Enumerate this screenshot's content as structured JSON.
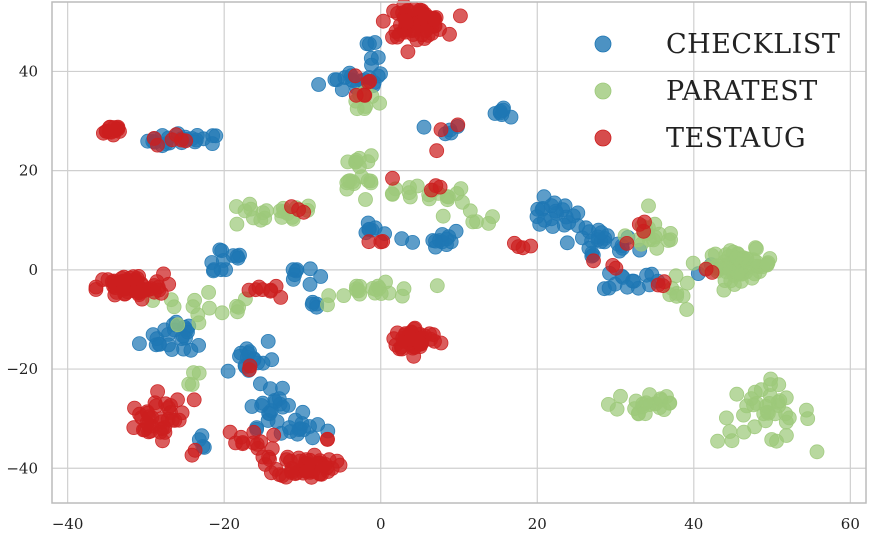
{
  "chart_data": {
    "type": "scatter",
    "title": "",
    "xlabel": "",
    "ylabel": "",
    "xlim": [
      -42,
      62
    ],
    "ylim": [
      -47,
      54
    ],
    "x_ticks": [
      -40,
      -20,
      0,
      20,
      40,
      60
    ],
    "y_ticks": [
      -40,
      -20,
      0,
      20,
      40
    ],
    "x_tick_labels": [
      "−40",
      "−20",
      "0",
      "20",
      "40",
      "60"
    ],
    "y_tick_labels": [
      "−40",
      "−20",
      "0",
      "20",
      "40"
    ],
    "grid": true,
    "legend_position": "top-right",
    "series": [
      {
        "name": "CheckList",
        "legend_label": "CHECKLIST",
        "color": "#1f77b4",
        "clusters": [
          {
            "center": [
              -3,
              38
            ],
            "spread": [
              4,
              2
            ],
            "count": 18
          },
          {
            "center": [
              -1,
              46
            ],
            "spread": [
              1,
              3
            ],
            "count": 6
          },
          {
            "center": [
              -25,
              26
            ],
            "spread": [
              4,
              1.2
            ],
            "count": 22
          },
          {
            "center": [
              16,
              32
            ],
            "spread": [
              1.5,
              1
            ],
            "count": 7
          },
          {
            "center": [
              8,
              28
            ],
            "spread": [
              2,
              1
            ],
            "count": 5
          },
          {
            "center": [
              22,
              11
            ],
            "spread": [
              3,
              2.5
            ],
            "count": 20
          },
          {
            "center": [
              28,
              5
            ],
            "spread": [
              4,
              3
            ],
            "count": 24
          },
          {
            "center": [
              32,
              -2
            ],
            "spread": [
              3,
              2
            ],
            "count": 14
          },
          {
            "center": [
              6,
              6
            ],
            "spread": [
              4,
              2
            ],
            "count": 14
          },
          {
            "center": [
              -2,
              9
            ],
            "spread": [
              2,
              1.5
            ],
            "count": 6
          },
          {
            "center": [
              -20,
              2
            ],
            "spread": [
              2.5,
              3
            ],
            "count": 12
          },
          {
            "center": [
              -25,
              -13
            ],
            "spread": [
              2.5,
              4
            ],
            "count": 16
          },
          {
            "center": [
              -17,
              -18
            ],
            "spread": [
              3,
              4
            ],
            "count": 18
          },
          {
            "center": [
              -14,
              -28
            ],
            "spread": [
              3,
              3
            ],
            "count": 20
          },
          {
            "center": [
              -10,
              -32
            ],
            "spread": [
              3,
              2
            ],
            "count": 12
          },
          {
            "center": [
              -29,
              -14
            ],
            "spread": [
              1.5,
              2
            ],
            "count": 6
          },
          {
            "center": [
              -11,
              -1
            ],
            "spread": [
              2,
              2
            ],
            "count": 8
          },
          {
            "center": [
              -8,
              -7
            ],
            "spread": [
              1.5,
              1
            ],
            "count": 4
          },
          {
            "center": [
              -23,
              -35
            ],
            "spread": [
              1.5,
              1.5
            ],
            "count": 4
          },
          {
            "center": [
              41,
              0
            ],
            "spread": [
              1,
              1
            ],
            "count": 2
          }
        ]
      },
      {
        "name": "ParaTest",
        "legend_label": "PARATEST",
        "color": "#9dc97a",
        "clusters": [
          {
            "center": [
              46,
              1
            ],
            "spread": [
              3.5,
              2.5
            ],
            "count": 60
          },
          {
            "center": [
              49,
              -29
            ],
            "spread": [
              5,
              5
            ],
            "count": 38
          },
          {
            "center": [
              34,
              -27
            ],
            "spread": [
              4,
              3
            ],
            "count": 22
          },
          {
            "center": [
              35,
              7
            ],
            "spread": [
              3,
              3
            ],
            "count": 18
          },
          {
            "center": [
              38,
              -5
            ],
            "spread": [
              2,
              3
            ],
            "count": 8
          },
          {
            "center": [
              -15,
              11
            ],
            "spread": [
              6,
              2
            ],
            "count": 20
          },
          {
            "center": [
              6,
              15
            ],
            "spread": [
              5,
              1.5
            ],
            "count": 18
          },
          {
            "center": [
              -3,
              22
            ],
            "spread": [
              2,
              1.2
            ],
            "count": 8
          },
          {
            "center": [
              -3,
              17
            ],
            "spread": [
              3,
              1.2
            ],
            "count": 10
          },
          {
            "center": [
              0,
              -4
            ],
            "spread": [
              5,
              2
            ],
            "count": 20
          },
          {
            "center": [
              -24,
              -8
            ],
            "spread": [
              3,
              3
            ],
            "count": 10
          },
          {
            "center": [
              -2,
              35
            ],
            "spread": [
              2,
              3
            ],
            "count": 8
          },
          {
            "center": [
              12,
              11
            ],
            "spread": [
              3,
              1.5
            ],
            "count": 6
          },
          {
            "center": [
              -24,
              -22
            ],
            "spread": [
              1,
              1.5
            ],
            "count": 4
          },
          {
            "center": [
              -18,
              -8
            ],
            "spread": [
              2,
              1.5
            ],
            "count": 5
          }
        ]
      },
      {
        "name": "TestAug",
        "legend_label": "TESTAUG",
        "color": "#cc1f1f",
        "clusters": [
          {
            "center": [
              4.5,
              50
            ],
            "spread": [
              3,
              2.5
            ],
            "count": 70
          },
          {
            "center": [
              -32,
              -3.5
            ],
            "spread": [
              3.5,
              2.2
            ],
            "count": 70
          },
          {
            "center": [
              4.5,
              -14
            ],
            "spread": [
              2.5,
              2
            ],
            "count": 50
          },
          {
            "center": [
              -9.5,
              -39.5
            ],
            "spread": [
              3,
              2
            ],
            "count": 50
          },
          {
            "center": [
              -34.5,
              28
            ],
            "spread": [
              1.5,
              1.2
            ],
            "count": 14
          },
          {
            "center": [
              -30,
              -31
            ],
            "spread": [
              3,
              3
            ],
            "count": 26
          },
          {
            "center": [
              -17,
              -35
            ],
            "spread": [
              3,
              2.5
            ],
            "count": 14
          },
          {
            "center": [
              -26.5,
              -28
            ],
            "spread": [
              2,
              3
            ],
            "count": 10
          },
          {
            "center": [
              -3,
              37
            ],
            "spread": [
              2,
              2
            ],
            "count": 6
          },
          {
            "center": [
              -14.5,
              -4
            ],
            "spread": [
              2,
              2
            ],
            "count": 8
          },
          {
            "center": [
              -27,
              26
            ],
            "spread": [
              2,
              1.5
            ],
            "count": 6
          },
          {
            "center": [
              -11,
              12
            ],
            "spread": [
              1,
              1
            ],
            "count": 3
          },
          {
            "center": [
              5,
              18
            ],
            "spread": [
              3,
              2
            ],
            "count": 4
          },
          {
            "center": [
              19,
              5
            ],
            "spread": [
              2,
              1
            ],
            "count": 4
          },
          {
            "center": [
              32,
              8
            ],
            "spread": [
              2,
              2
            ],
            "count": 4
          },
          {
            "center": [
              36,
              -3
            ],
            "spread": [
              1.5,
              1
            ],
            "count": 3
          },
          {
            "center": [
              -1,
              6
            ],
            "spread": [
              2,
              2
            ],
            "count": 3
          },
          {
            "center": [
              9,
              28
            ],
            "spread": [
              1,
              1
            ],
            "count": 2
          },
          {
            "center": [
              29,
              1
            ],
            "spread": [
              1.5,
              1
            ],
            "count": 3
          },
          {
            "center": [
              -7,
              -34
            ],
            "spread": [
              1,
              1
            ],
            "count": 2
          },
          {
            "center": [
              -24,
              -37
            ],
            "spread": [
              1,
              1
            ],
            "count": 2
          },
          {
            "center": [
              7,
              24
            ],
            "spread": [
              1,
              1
            ],
            "count": 1
          },
          {
            "center": [
              42,
              0
            ],
            "spread": [
              1,
              1
            ],
            "count": 2
          },
          {
            "center": [
              -17,
              -20
            ],
            "spread": [
              1,
              1
            ],
            "count": 2
          }
        ]
      }
    ]
  }
}
